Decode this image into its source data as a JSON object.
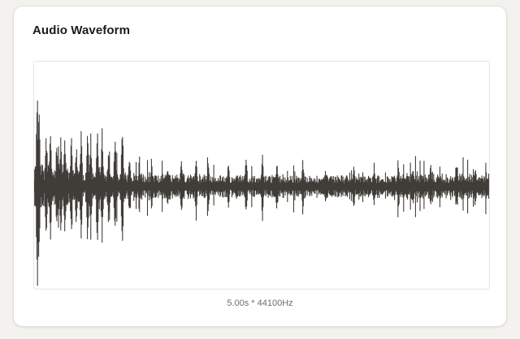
{
  "panel": {
    "title": "Audio Waveform"
  },
  "waveform": {
    "duration_seconds": 5.0,
    "sample_rate_hz": 44100,
    "caption": "5.00s * 44100Hz",
    "color": "#403d39"
  },
  "colors": {
    "background": "#f3f2ef",
    "card": "#ffffff",
    "border": "#e2e1dd"
  }
}
